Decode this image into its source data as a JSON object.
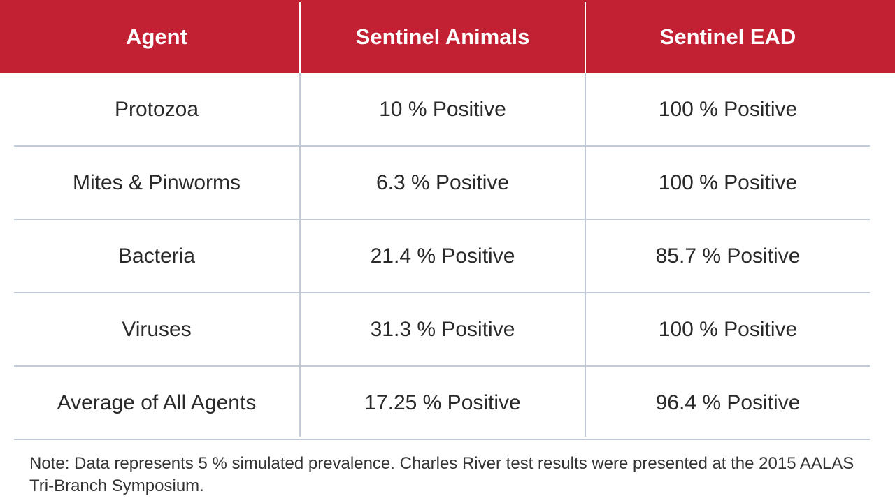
{
  "table": {
    "headers": [
      "Agent",
      "Sentinel Animals",
      "Sentinel EAD"
    ],
    "rows": [
      [
        "Protozoa",
        "10 % Positive",
        "100 % Positive"
      ],
      [
        "Mites & Pinworms",
        "6.3 % Positive",
        "100 % Positive"
      ],
      [
        "Bacteria",
        "21.4 % Positive",
        "85.7 % Positive"
      ],
      [
        "Viruses",
        "31.3 % Positive",
        "100 % Positive"
      ],
      [
        "Average of All Agents",
        "17.25 % Positive",
        "96.4 % Positive"
      ]
    ]
  },
  "note": "Note: Data represents 5 % simulated prevalence. Charles River test results were presented at the 2015 AALAS Tri-Branch Symposium.",
  "colors": {
    "header_bg": "#c22033",
    "divider": "#c3ccd6"
  }
}
